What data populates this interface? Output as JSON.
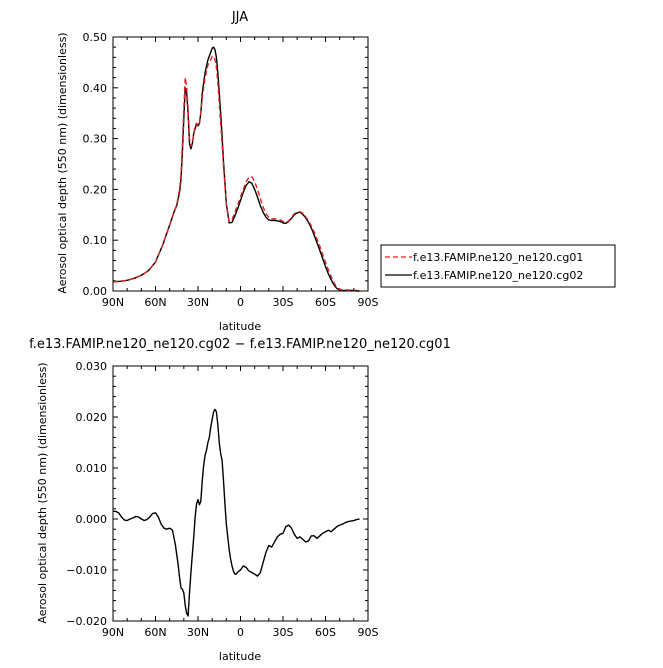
{
  "chart_data": [
    {
      "type": "line",
      "title": "JJA",
      "xlabel": "latitude",
      "ylabel": "Aerosol optical depth (550 nm) (dimensionless)",
      "xlim": [
        90,
        -90
      ],
      "ylim": [
        0,
        0.5
      ],
      "yticks": [
        0.0,
        0.1,
        0.2,
        0.3,
        0.4,
        0.5
      ],
      "ytick_labels": [
        "0.00",
        "0.10",
        "0.20",
        "0.30",
        "0.40",
        "0.50"
      ],
      "xticks": [
        90,
        60,
        30,
        0,
        -30,
        -60,
        -90
      ],
      "xtick_labels": [
        "90N",
        "60N",
        "30N",
        "0",
        "30S",
        "60S",
        "90S"
      ],
      "legend": "outside-right",
      "grid": false,
      "series": [
        {
          "name": "f.e13.FAMIP.ne120_ne120.cg01",
          "color": "#e02020",
          "dash": "dashed",
          "x": [
            90,
            85,
            80,
            75,
            70,
            65,
            60,
            55,
            50,
            47,
            45,
            43,
            42,
            41,
            40,
            39,
            38,
            37,
            36,
            35,
            34,
            33,
            32,
            31,
            30,
            29,
            28,
            27,
            25,
            23,
            21,
            20,
            19,
            18,
            17,
            16,
            15,
            14,
            13,
            12,
            10,
            8,
            6,
            4,
            2,
            0,
            -2,
            -4,
            -6,
            -8,
            -10,
            -12,
            -14,
            -16,
            -18,
            -20,
            -22,
            -24,
            -26,
            -28,
            -30,
            -32,
            -34,
            -36,
            -38,
            -40,
            -42,
            -44,
            -46,
            -48,
            -50,
            -52,
            -54,
            -56,
            -58,
            -60,
            -62,
            -64,
            -66,
            -68,
            -70,
            -72,
            -74,
            -76,
            -78,
            -80,
            -82,
            -84
          ],
          "values": [
            0.018,
            0.019,
            0.021,
            0.025,
            0.031,
            0.04,
            0.057,
            0.09,
            0.13,
            0.155,
            0.17,
            0.2,
            0.23,
            0.29,
            0.36,
            0.42,
            0.4,
            0.36,
            0.3,
            0.285,
            0.29,
            0.31,
            0.325,
            0.33,
            0.325,
            0.33,
            0.35,
            0.38,
            0.42,
            0.445,
            0.455,
            0.462,
            0.462,
            0.455,
            0.44,
            0.41,
            0.37,
            0.33,
            0.29,
            0.245,
            0.17,
            0.137,
            0.14,
            0.155,
            0.17,
            0.185,
            0.2,
            0.215,
            0.224,
            0.225,
            0.215,
            0.2,
            0.182,
            0.165,
            0.152,
            0.145,
            0.142,
            0.142,
            0.141,
            0.14,
            0.137,
            0.135,
            0.138,
            0.145,
            0.152,
            0.156,
            0.156,
            0.153,
            0.146,
            0.138,
            0.128,
            0.116,
            0.102,
            0.088,
            0.072,
            0.056,
            0.042,
            0.028,
            0.016,
            0.007,
            0.003,
            0.002,
            0.002,
            0.002,
            0.001,
            0.001,
            0.001,
            0.0
          ]
        },
        {
          "name": "f.e13.FAMIP.ne120_ne120.cg02",
          "color": "#000000",
          "dash": "solid",
          "x": [
            90,
            85,
            80,
            75,
            70,
            65,
            60,
            55,
            50,
            47,
            45,
            43,
            42,
            41,
            40,
            39,
            38,
            37,
            36,
            35,
            34,
            33,
            32,
            31,
            30,
            29,
            28,
            27,
            25,
            23,
            21,
            20,
            19,
            18,
            17,
            16,
            15,
            14,
            13,
            12,
            10,
            8,
            6,
            4,
            2,
            0,
            -2,
            -4,
            -6,
            -8,
            -10,
            -12,
            -14,
            -16,
            -18,
            -20,
            -22,
            -24,
            -26,
            -28,
            -30,
            -32,
            -34,
            -36,
            -38,
            -40,
            -42,
            -44,
            -46,
            -48,
            -50,
            -52,
            -54,
            -56,
            -58,
            -60,
            -62,
            -64,
            -66,
            -68,
            -70,
            -72,
            -74,
            -76,
            -78,
            -80,
            -82,
            -84
          ],
          "values": [
            0.018,
            0.019,
            0.021,
            0.025,
            0.031,
            0.04,
            0.057,
            0.09,
            0.13,
            0.155,
            0.168,
            0.195,
            0.22,
            0.275,
            0.34,
            0.4,
            0.39,
            0.35,
            0.29,
            0.28,
            0.29,
            0.31,
            0.32,
            0.33,
            0.325,
            0.33,
            0.35,
            0.39,
            0.43,
            0.455,
            0.47,
            0.478,
            0.48,
            0.475,
            0.46,
            0.43,
            0.39,
            0.35,
            0.305,
            0.255,
            0.172,
            0.134,
            0.135,
            0.148,
            0.162,
            0.178,
            0.195,
            0.208,
            0.215,
            0.212,
            0.2,
            0.185,
            0.168,
            0.155,
            0.145,
            0.14,
            0.139,
            0.139,
            0.138,
            0.137,
            0.134,
            0.133,
            0.137,
            0.143,
            0.15,
            0.154,
            0.155,
            0.151,
            0.144,
            0.135,
            0.124,
            0.11,
            0.095,
            0.08,
            0.064,
            0.048,
            0.034,
            0.022,
            0.012,
            0.005,
            0.002,
            0.001,
            0.001,
            0.001,
            0.001,
            0.001,
            0.0,
            0.0
          ]
        }
      ]
    },
    {
      "type": "line",
      "title": "f.e13.FAMIP.ne120_ne120.cg02 − f.e13.FAMIP.ne120_ne120.cg01",
      "xlabel": "latitude",
      "ylabel": "Aerosol optical depth (550 nm) (dimensionless)",
      "xlim": [
        90,
        -90
      ],
      "ylim": [
        -0.02,
        0.03
      ],
      "yticks": [
        -0.02,
        -0.01,
        0.0,
        0.01,
        0.02,
        0.03
      ],
      "ytick_labels": [
        "−0.020",
        "−0.010",
        "0.000",
        "0.010",
        "0.020",
        "0.030"
      ],
      "xticks": [
        90,
        60,
        30,
        0,
        -30,
        -60,
        -90
      ],
      "xtick_labels": [
        "90N",
        "60N",
        "30N",
        "0",
        "30S",
        "60S",
        "90S"
      ],
      "grid": false,
      "series": [
        {
          "color": "#000000",
          "dash": "solid",
          "x": [
            90,
            88,
            86,
            84,
            82,
            80,
            78,
            76,
            74,
            72,
            70,
            68,
            66,
            64,
            62,
            60,
            58,
            56,
            54,
            52,
            50,
            48,
            46,
            44,
            43,
            42,
            41,
            40,
            39,
            38,
            37,
            36,
            35,
            34,
            33,
            32,
            31,
            30,
            29,
            28,
            27,
            26,
            25,
            24,
            23,
            22,
            21,
            20,
            19,
            18,
            17,
            16,
            15,
            14,
            13,
            12,
            11,
            10,
            9,
            8,
            7,
            6,
            5,
            4,
            3,
            2,
            1,
            0,
            -2,
            -4,
            -6,
            -8,
            -10,
            -12,
            -14,
            -16,
            -18,
            -20,
            -22,
            -24,
            -26,
            -28,
            -30,
            -32,
            -34,
            -36,
            -38,
            -40,
            -42,
            -44,
            -46,
            -48,
            -50,
            -52,
            -54,
            -56,
            -58,
            -60,
            -62,
            -64,
            -66,
            -68,
            -70,
            -72,
            -74,
            -76,
            -78,
            -80,
            -82,
            -84
          ],
          "values": [
            0.0015,
            0.0015,
            0.0012,
            0.0004,
            -0.0002,
            -0.0003,
            0.0,
            0.0002,
            0.0005,
            0.0004,
            0.0,
            -0.0003,
            -0.0001,
            0.0004,
            0.0011,
            0.0012,
            0.0004,
            -0.001,
            -0.0018,
            -0.002,
            -0.0018,
            -0.0022,
            -0.005,
            -0.009,
            -0.0115,
            -0.0135,
            -0.0138,
            -0.0145,
            -0.017,
            -0.0185,
            -0.019,
            -0.0145,
            -0.0105,
            -0.007,
            -0.0035,
            0.0005,
            0.003,
            0.0038,
            0.0028,
            0.0035,
            0.0075,
            0.0105,
            0.0125,
            0.0135,
            0.015,
            0.016,
            0.018,
            0.0195,
            0.021,
            0.0215,
            0.021,
            0.0185,
            0.015,
            0.0128,
            0.0115,
            0.0075,
            0.003,
            -0.001,
            -0.0035,
            -0.006,
            -0.0078,
            -0.0092,
            -0.0102,
            -0.0108,
            -0.0108,
            -0.0104,
            -0.0102,
            -0.01,
            -0.0092,
            -0.0095,
            -0.0102,
            -0.0105,
            -0.0108,
            -0.0112,
            -0.0105,
            -0.0085,
            -0.0065,
            -0.0052,
            -0.0055,
            -0.0045,
            -0.0035,
            -0.003,
            -0.0028,
            -0.0015,
            -0.0012,
            -0.0018,
            -0.003,
            -0.0038,
            -0.0035,
            -0.004,
            -0.0045,
            -0.0043,
            -0.0033,
            -0.0033,
            -0.0038,
            -0.0033,
            -0.0028,
            -0.0025,
            -0.0022,
            -0.0025,
            -0.002,
            -0.0015,
            -0.0012,
            -0.001,
            -0.0007,
            -0.0005,
            -0.0004,
            -0.0003,
            -0.0001,
            0.0
          ]
        }
      ]
    }
  ]
}
